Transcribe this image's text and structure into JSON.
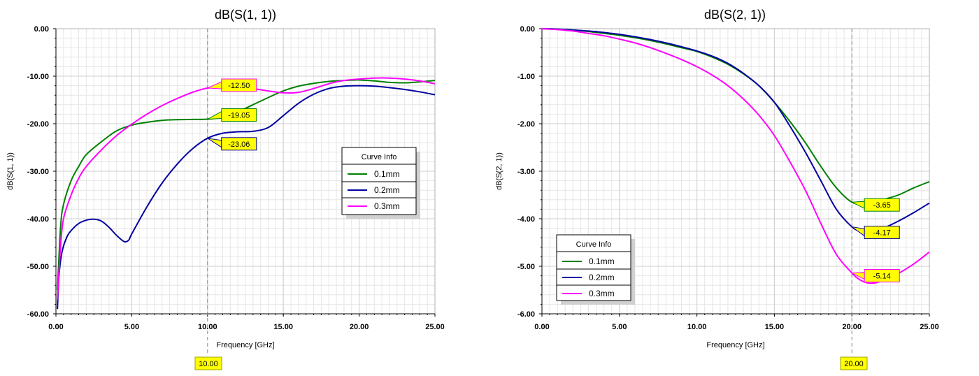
{
  "chart_data": [
    {
      "type": "line",
      "title": "dB(S(1, 1))",
      "xlabel": "Frequency [GHz]",
      "ylabel": "dB(S(1, 1))",
      "xlim": [
        0,
        25
      ],
      "ylim": [
        -60,
        0
      ],
      "xticks": [
        "0.00",
        "5.00",
        "10.00",
        "15.00",
        "20.00",
        "25.00"
      ],
      "yticks": [
        "0.00",
        "-10.00",
        "-20.00",
        "-30.00",
        "-40.00",
        "-50.00",
        "-60.00"
      ],
      "grid": true,
      "legend": {
        "title": "Curve Info",
        "placement": "right-middle"
      },
      "vertical_marker": {
        "x": 10,
        "label": "10.00"
      },
      "marker_labels": [
        {
          "series": "0.3mm",
          "x": 10,
          "y": -12.5,
          "label": "-12.50"
        },
        {
          "series": "0.1mm",
          "x": 10,
          "y": -19.05,
          "label": "-19.05"
        },
        {
          "series": "0.2mm",
          "x": 10,
          "y": -23.06,
          "label": "-23.06"
        }
      ],
      "series": [
        {
          "name": "0.1mm",
          "color": "#008000",
          "x": [
            0.1,
            0.3,
            0.5,
            1,
            1.5,
            2,
            3,
            4,
            5,
            6,
            7,
            8,
            9,
            10,
            11,
            12,
            13,
            14,
            15,
            16,
            17,
            18,
            19,
            20,
            21,
            22,
            23,
            24,
            25
          ],
          "y": [
            -55,
            -42,
            -37,
            -32,
            -29,
            -26.5,
            -23.8,
            -21.5,
            -20.3,
            -19.7,
            -19.3,
            -19.15,
            -19.1,
            -19.05,
            -18.6,
            -17.5,
            -16,
            -14.5,
            -13.1,
            -12.1,
            -11.5,
            -11.1,
            -10.9,
            -10.8,
            -11,
            -11.3,
            -11.4,
            -11.2,
            -10.9
          ]
        },
        {
          "name": "0.2mm",
          "color": "#0000A0",
          "x": [
            0.1,
            0.2,
            0.4,
            0.7,
            1,
            1.5,
            2,
            2.5,
            3,
            3.5,
            4,
            4.5,
            4.8,
            5,
            6,
            7,
            8,
            9,
            10,
            11,
            12,
            13,
            14,
            15,
            16,
            17,
            18,
            19,
            20,
            21,
            22,
            23,
            24,
            25
          ],
          "y": [
            -59,
            -52,
            -47,
            -44,
            -42.5,
            -41,
            -40.3,
            -40.1,
            -40.5,
            -41.8,
            -43.5,
            -44.8,
            -44.5,
            -43.2,
            -37.5,
            -32.5,
            -28.5,
            -25.3,
            -23.06,
            -22,
            -21.7,
            -21.6,
            -20.8,
            -18.3,
            -15.7,
            -13.8,
            -12.6,
            -12.1,
            -12,
            -12.1,
            -12.4,
            -12.8,
            -13.3,
            -13.9
          ]
        },
        {
          "name": "0.3mm",
          "color": "#FF00FF",
          "x": [
            0.1,
            0.3,
            0.5,
            1,
            1.5,
            2,
            3,
            4,
            5,
            6,
            7,
            8,
            9,
            10,
            11,
            12,
            13,
            14,
            15,
            16,
            17,
            18,
            19,
            20,
            21,
            22,
            23,
            24,
            25
          ],
          "y": [
            -57,
            -46,
            -40,
            -35,
            -31.5,
            -29,
            -25.5,
            -22.5,
            -20.1,
            -18,
            -16.2,
            -14.7,
            -13.4,
            -12.5,
            -12.2,
            -12.2,
            -12.6,
            -13.1,
            -13.5,
            -13.4,
            -12.6,
            -11.6,
            -10.9,
            -10.6,
            -10.4,
            -10.4,
            -10.6,
            -11,
            -11.6
          ]
        }
      ]
    },
    {
      "type": "line",
      "title": "dB(S(2, 1))",
      "xlabel": "Frequency [GHz]",
      "ylabel": "dB(S(2, 1))",
      "xlim": [
        0,
        25
      ],
      "ylim": [
        -6,
        0
      ],
      "xticks": [
        "0.00",
        "5.00",
        "10.00",
        "15.00",
        "20.00",
        "25.00"
      ],
      "yticks": [
        "0.00",
        "-1.00",
        "-2.00",
        "-3.00",
        "-4.00",
        "-5.00",
        "-6.00"
      ],
      "grid": true,
      "legend": {
        "title": "Curve Info",
        "placement": "left-bottom"
      },
      "vertical_marker": {
        "x": 20,
        "label": "20.00"
      },
      "marker_labels": [
        {
          "series": "0.1mm",
          "x": 20,
          "y": -3.65,
          "label": "-3.65"
        },
        {
          "series": "0.2mm",
          "x": 20,
          "y": -4.17,
          "label": "-4.17"
        },
        {
          "series": "0.3mm",
          "x": 20,
          "y": -5.14,
          "label": "-5.14"
        }
      ],
      "series": [
        {
          "name": "0.1mm",
          "color": "#008000",
          "x": [
            0,
            1,
            2,
            3,
            4,
            5,
            6,
            7,
            8,
            9,
            10,
            11,
            12,
            13,
            14,
            15,
            16,
            17,
            18,
            19,
            20,
            21,
            22,
            23,
            24,
            25
          ],
          "y": [
            0,
            -0.01,
            -0.03,
            -0.06,
            -0.1,
            -0.14,
            -0.19,
            -0.25,
            -0.32,
            -0.4,
            -0.48,
            -0.6,
            -0.75,
            -0.95,
            -1.2,
            -1.55,
            -1.95,
            -2.4,
            -2.9,
            -3.35,
            -3.65,
            -3.7,
            -3.6,
            -3.5,
            -3.35,
            -3.22
          ]
        },
        {
          "name": "0.2mm",
          "color": "#0000A0",
          "x": [
            0,
            1,
            2,
            3,
            4,
            5,
            6,
            7,
            8,
            9,
            10,
            11,
            12,
            13,
            14,
            15,
            16,
            17,
            18,
            19,
            20,
            20.5,
            21,
            22,
            23,
            24,
            25
          ],
          "y": [
            0,
            -0.01,
            -0.03,
            -0.05,
            -0.08,
            -0.12,
            -0.17,
            -0.23,
            -0.3,
            -0.38,
            -0.47,
            -0.58,
            -0.73,
            -0.94,
            -1.2,
            -1.55,
            -2.05,
            -2.6,
            -3.2,
            -3.8,
            -4.17,
            -4.25,
            -4.27,
            -4.2,
            -4.05,
            -3.87,
            -3.67
          ]
        },
        {
          "name": "0.3mm",
          "color": "#FF00FF",
          "x": [
            0,
            1,
            2,
            3,
            4,
            5,
            6,
            7,
            8,
            9,
            10,
            11,
            12,
            13,
            14,
            15,
            16,
            17,
            18,
            19,
            20,
            20.5,
            21,
            21.5,
            22,
            23,
            24,
            25
          ],
          "y": [
            0,
            -0.02,
            -0.05,
            -0.1,
            -0.15,
            -0.22,
            -0.3,
            -0.4,
            -0.52,
            -0.65,
            -0.8,
            -0.98,
            -1.2,
            -1.48,
            -1.82,
            -2.25,
            -2.8,
            -3.4,
            -4.1,
            -4.75,
            -5.14,
            -5.28,
            -5.35,
            -5.35,
            -5.3,
            -5.15,
            -4.95,
            -4.7
          ]
        }
      ]
    }
  ]
}
